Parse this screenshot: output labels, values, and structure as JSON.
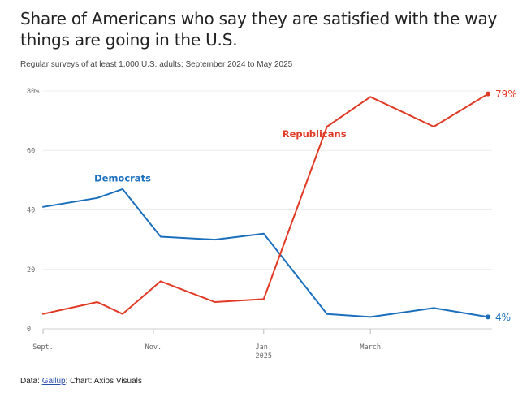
{
  "title": "Share of Americans who say they are satisfied with the way things are going in the U.S.",
  "subtitle": "Regular surveys of at least 1,000 U.S. adults; September 2024 to May 2025",
  "footer": {
    "data_prefix": "Data: ",
    "source_link": "Gallup",
    "suffix": "; Chart: Axios Visuals"
  },
  "chart_data": {
    "type": "line",
    "title": "Share of Americans who say they are satisfied with the way things are going in the U.S.",
    "ylim": [
      0,
      80
    ],
    "yticks": [
      {
        "value": 0,
        "label": "0"
      },
      {
        "value": 20,
        "label": "20"
      },
      {
        "value": 40,
        "label": "40"
      },
      {
        "value": 60,
        "label": "60"
      },
      {
        "value": 80,
        "label": "80%"
      }
    ],
    "x": [
      "2024-09-01",
      "2024-10-01",
      "2024-10-15",
      "2024-11-05",
      "2024-12-05",
      "2025-01-01",
      "2025-02-05",
      "2025-03-01",
      "2025-04-05",
      "2025-05-05"
    ],
    "xticks": [
      {
        "date": "2024-09-01",
        "label": "Sept.",
        "sublabel": ""
      },
      {
        "date": "2024-11-01",
        "label": "Nov.",
        "sublabel": ""
      },
      {
        "date": "2025-01-01",
        "label": "Jan.",
        "sublabel": "2025"
      },
      {
        "date": "2025-03-01",
        "label": "March",
        "sublabel": ""
      }
    ],
    "xlim": [
      "2024-09-01",
      "2025-05-05"
    ],
    "grid": true,
    "series": [
      {
        "name": "Democrats",
        "color": "#1a6fbd",
        "end_label": "4%",
        "values": [
          41,
          44,
          47,
          31,
          30,
          32,
          5,
          4,
          7,
          4
        ]
      },
      {
        "name": "Republicans",
        "color": "#e03a25",
        "end_label": "79%",
        "values": [
          5,
          9,
          5,
          16,
          9,
          10,
          68,
          78,
          68,
          79
        ]
      }
    ]
  }
}
